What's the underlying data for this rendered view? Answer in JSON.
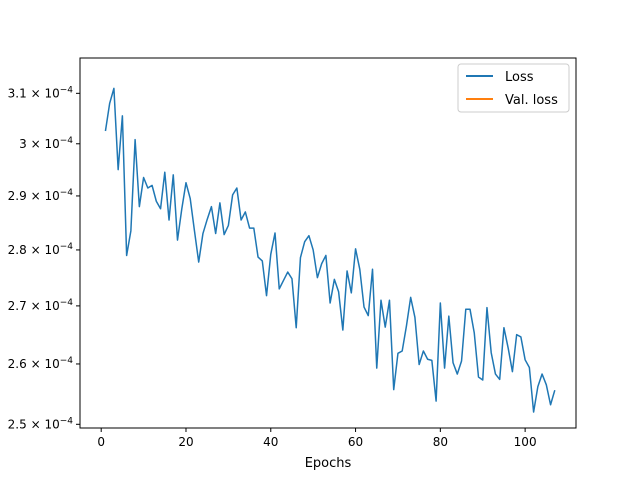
{
  "chart_data": {
    "type": "line",
    "title": "",
    "xlabel": "Epochs",
    "ylabel": "",
    "yscale": "log",
    "xlim": [
      -5,
      112
    ],
    "ylim": [
      0.0002494,
      0.0003172
    ],
    "xticks": [
      0,
      20,
      40,
      60,
      80,
      100
    ],
    "yticks": [
      {
        "value": 0.00025,
        "base": "2.5"
      },
      {
        "value": 0.00026,
        "base": "2.6"
      },
      {
        "value": 0.00027,
        "base": "2.7"
      },
      {
        "value": 0.00028,
        "base": "2.8"
      },
      {
        "value": 0.00029,
        "base": "2.9"
      },
      {
        "value": 0.0003,
        "base": "3"
      },
      {
        "value": 0.00031,
        "base": "3.1"
      }
    ],
    "ytick_suffix": "× 10",
    "ytick_exponent": "−4",
    "grid": false,
    "legend_position": "upper right",
    "series": [
      {
        "name": "Loss",
        "color": "#1f77b4",
        "x": [
          1,
          2,
          3,
          4,
          5,
          6,
          7,
          8,
          9,
          10,
          11,
          12,
          13,
          14,
          15,
          16,
          17,
          18,
          19,
          20,
          21,
          22,
          23,
          24,
          25,
          26,
          27,
          28,
          29,
          30,
          31,
          32,
          33,
          34,
          35,
          36,
          37,
          38,
          39,
          40,
          41,
          42,
          43,
          44,
          45,
          46,
          47,
          48,
          49,
          50,
          51,
          52,
          53,
          54,
          55,
          56,
          57,
          58,
          59,
          60,
          61,
          62,
          63,
          64,
          65,
          66,
          67,
          68,
          69,
          70,
          71,
          72,
          73,
          74,
          75,
          76,
          77,
          78,
          79,
          80,
          81,
          82,
          83,
          84,
          85,
          86,
          87,
          88,
          89,
          90,
          91,
          92,
          93,
          94,
          95,
          96,
          97,
          98,
          99,
          100,
          101,
          102,
          103,
          104,
          105,
          106,
          107
        ],
        "y": [
          0.0003025,
          0.000308,
          0.000311,
          0.000295,
          0.0003055,
          0.000279,
          0.0002835,
          0.0003008,
          0.000288,
          0.0002935,
          0.0002915,
          0.000292,
          0.000289,
          0.0002876,
          0.0002945,
          0.0002855,
          0.000294,
          0.0002818,
          0.0002875,
          0.0002925,
          0.0002895,
          0.0002835,
          0.0002778,
          0.000283,
          0.0002856,
          0.000288,
          0.000283,
          0.0002887,
          0.0002828,
          0.0002845,
          0.0002902,
          0.0002915,
          0.0002855,
          0.000287,
          0.000284,
          0.000284,
          0.0002787,
          0.000278,
          0.0002718,
          0.0002792,
          0.0002831,
          0.000273,
          0.0002745,
          0.000276,
          0.0002748,
          0.0002662,
          0.0002786,
          0.0002815,
          0.0002826,
          0.00028,
          0.000275,
          0.0002775,
          0.000279,
          0.0002705,
          0.0002747,
          0.0002725,
          0.0002658,
          0.0002762,
          0.0002723,
          0.0002802,
          0.0002765,
          0.0002698,
          0.0002683,
          0.0002765,
          0.0002593,
          0.000271,
          0.0002663,
          0.000271,
          0.0002557,
          0.0002618,
          0.0002622,
          0.0002665,
          0.0002715,
          0.000268,
          0.0002599,
          0.0002622,
          0.0002608,
          0.0002606,
          0.0002538,
          0.0002705,
          0.0002593,
          0.0002682,
          0.0002602,
          0.0002583,
          0.0002605,
          0.0002694,
          0.0002694,
          0.0002653,
          0.0002578,
          0.0002573,
          0.0002697,
          0.0002619,
          0.0002583,
          0.0002574,
          0.0002662,
          0.0002627,
          0.0002587,
          0.000265,
          0.0002646,
          0.0002607,
          0.0002594,
          0.000252,
          0.0002562,
          0.0002583,
          0.0002565,
          0.0002532,
          0.0002556
        ]
      },
      {
        "name": "Val. loss",
        "color": "#ff7f0e",
        "x": [],
        "y": []
      }
    ]
  }
}
